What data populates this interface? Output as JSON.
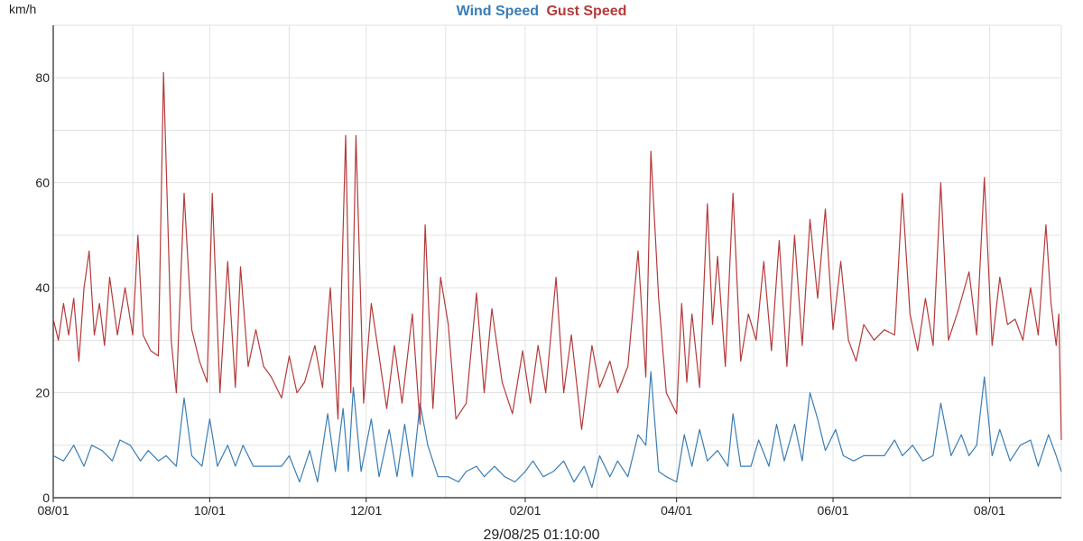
{
  "colors": {
    "wind": "#3a7db5",
    "gust": "#b53a3a",
    "grid": "#e2e2e2",
    "axis": "#222222"
  },
  "chart_data": {
    "type": "line",
    "title_parts": [
      "Wind Speed",
      "Gust Speed"
    ],
    "ylabel": "km/h",
    "ylim": [
      0,
      90
    ],
    "y_ticks": [
      0,
      20,
      40,
      60,
      80
    ],
    "x_range": [
      "2024-08-01",
      "2025-08-29"
    ],
    "x_ticks": [
      {
        "date": "2024-08-01",
        "label": "08/01"
      },
      {
        "date": "2024-10-01",
        "label": "10/01"
      },
      {
        "date": "2024-12-01",
        "label": "12/01"
      },
      {
        "date": "2025-02-01",
        "label": "02/01"
      },
      {
        "date": "2025-04-01",
        "label": "04/01"
      },
      {
        "date": "2025-06-01",
        "label": "06/01"
      },
      {
        "date": "2025-08-01",
        "label": "08/01"
      }
    ],
    "timestamp": "29/08/25 01:10:00",
    "grid": true,
    "series": [
      {
        "name": "Wind Speed",
        "color": "#3a7db5",
        "points": [
          [
            "2024-08-01",
            8
          ],
          [
            "2024-08-05",
            7
          ],
          [
            "2024-08-09",
            10
          ],
          [
            "2024-08-13",
            6
          ],
          [
            "2024-08-16",
            10
          ],
          [
            "2024-08-20",
            9
          ],
          [
            "2024-08-24",
            7
          ],
          [
            "2024-08-27",
            11
          ],
          [
            "2024-08-31",
            10
          ],
          [
            "2024-09-04",
            7
          ],
          [
            "2024-09-07",
            9
          ],
          [
            "2024-09-11",
            7
          ],
          [
            "2024-09-14",
            8
          ],
          [
            "2024-09-18",
            6
          ],
          [
            "2024-09-21",
            19
          ],
          [
            "2024-09-24",
            8
          ],
          [
            "2024-09-28",
            6
          ],
          [
            "2024-10-01",
            15
          ],
          [
            "2024-10-04",
            6
          ],
          [
            "2024-10-08",
            10
          ],
          [
            "2024-10-11",
            6
          ],
          [
            "2024-10-14",
            10
          ],
          [
            "2024-10-18",
            6
          ],
          [
            "2024-10-22",
            6
          ],
          [
            "2024-10-25",
            6
          ],
          [
            "2024-10-29",
            6
          ],
          [
            "2024-11-01",
            8
          ],
          [
            "2024-11-05",
            3
          ],
          [
            "2024-11-09",
            9
          ],
          [
            "2024-11-12",
            3
          ],
          [
            "2024-11-16",
            16
          ],
          [
            "2024-11-19",
            5
          ],
          [
            "2024-11-22",
            17
          ],
          [
            "2024-11-24",
            5
          ],
          [
            "2024-11-26",
            21
          ],
          [
            "2024-11-29",
            5
          ],
          [
            "2024-12-03",
            15
          ],
          [
            "2024-12-06",
            4
          ],
          [
            "2024-12-10",
            13
          ],
          [
            "2024-12-13",
            4
          ],
          [
            "2024-12-16",
            14
          ],
          [
            "2024-12-19",
            4
          ],
          [
            "2024-12-22",
            18
          ],
          [
            "2024-12-25",
            10
          ],
          [
            "2024-12-29",
            4
          ],
          [
            "2025-01-02",
            4
          ],
          [
            "2025-01-06",
            3
          ],
          [
            "2025-01-09",
            5
          ],
          [
            "2025-01-13",
            6
          ],
          [
            "2025-01-16",
            4
          ],
          [
            "2025-01-20",
            6
          ],
          [
            "2025-01-24",
            4
          ],
          [
            "2025-01-28",
            3
          ],
          [
            "2025-02-01",
            5
          ],
          [
            "2025-02-04",
            7
          ],
          [
            "2025-02-08",
            4
          ],
          [
            "2025-02-12",
            5
          ],
          [
            "2025-02-16",
            7
          ],
          [
            "2025-02-20",
            3
          ],
          [
            "2025-02-24",
            6
          ],
          [
            "2025-02-27",
            2
          ],
          [
            "2025-03-02",
            8
          ],
          [
            "2025-03-06",
            4
          ],
          [
            "2025-03-09",
            7
          ],
          [
            "2025-03-13",
            4
          ],
          [
            "2025-03-17",
            12
          ],
          [
            "2025-03-20",
            10
          ],
          [
            "2025-03-22",
            24
          ],
          [
            "2025-03-25",
            5
          ],
          [
            "2025-03-28",
            4
          ],
          [
            "2025-04-01",
            3
          ],
          [
            "2025-04-04",
            12
          ],
          [
            "2025-04-07",
            6
          ],
          [
            "2025-04-10",
            13
          ],
          [
            "2025-04-13",
            7
          ],
          [
            "2025-04-17",
            9
          ],
          [
            "2025-04-21",
            6
          ],
          [
            "2025-04-23",
            16
          ],
          [
            "2025-04-26",
            6
          ],
          [
            "2025-04-30",
            6
          ],
          [
            "2025-05-03",
            11
          ],
          [
            "2025-05-07",
            6
          ],
          [
            "2025-05-10",
            14
          ],
          [
            "2025-05-13",
            7
          ],
          [
            "2025-05-17",
            14
          ],
          [
            "2025-05-20",
            7
          ],
          [
            "2025-05-23",
            20
          ],
          [
            "2025-05-26",
            15
          ],
          [
            "2025-05-29",
            9
          ],
          [
            "2025-06-02",
            13
          ],
          [
            "2025-06-05",
            8
          ],
          [
            "2025-06-09",
            7
          ],
          [
            "2025-06-13",
            8
          ],
          [
            "2025-06-17",
            8
          ],
          [
            "2025-06-21",
            8
          ],
          [
            "2025-06-25",
            11
          ],
          [
            "2025-06-28",
            8
          ],
          [
            "2025-07-02",
            10
          ],
          [
            "2025-07-06",
            7
          ],
          [
            "2025-07-10",
            8
          ],
          [
            "2025-07-13",
            18
          ],
          [
            "2025-07-17",
            8
          ],
          [
            "2025-07-21",
            12
          ],
          [
            "2025-07-24",
            8
          ],
          [
            "2025-07-27",
            10
          ],
          [
            "2025-07-30",
            23
          ],
          [
            "2025-08-02",
            8
          ],
          [
            "2025-08-05",
            13
          ],
          [
            "2025-08-09",
            7
          ],
          [
            "2025-08-13",
            10
          ],
          [
            "2025-08-17",
            11
          ],
          [
            "2025-08-20",
            6
          ],
          [
            "2025-08-24",
            12
          ],
          [
            "2025-08-27",
            8
          ],
          [
            "2025-08-29",
            5
          ]
        ]
      },
      {
        "name": "Gust Speed",
        "color": "#b53a3a",
        "points": [
          [
            "2024-08-01",
            34
          ],
          [
            "2024-08-03",
            30
          ],
          [
            "2024-08-05",
            37
          ],
          [
            "2024-08-07",
            31
          ],
          [
            "2024-08-09",
            38
          ],
          [
            "2024-08-11",
            26
          ],
          [
            "2024-08-13",
            40
          ],
          [
            "2024-08-15",
            47
          ],
          [
            "2024-08-17",
            31
          ],
          [
            "2024-08-19",
            37
          ],
          [
            "2024-08-21",
            29
          ],
          [
            "2024-08-23",
            42
          ],
          [
            "2024-08-26",
            31
          ],
          [
            "2024-08-29",
            40
          ],
          [
            "2024-09-01",
            31
          ],
          [
            "2024-09-03",
            50
          ],
          [
            "2024-09-05",
            31
          ],
          [
            "2024-09-08",
            28
          ],
          [
            "2024-09-11",
            27
          ],
          [
            "2024-09-13",
            81
          ],
          [
            "2024-09-16",
            30
          ],
          [
            "2024-09-18",
            20
          ],
          [
            "2024-09-21",
            58
          ],
          [
            "2024-09-24",
            32
          ],
          [
            "2024-09-27",
            26
          ],
          [
            "2024-09-30",
            22
          ],
          [
            "2024-10-02",
            58
          ],
          [
            "2024-10-05",
            20
          ],
          [
            "2024-10-08",
            45
          ],
          [
            "2024-10-11",
            21
          ],
          [
            "2024-10-13",
            44
          ],
          [
            "2024-10-16",
            25
          ],
          [
            "2024-10-19",
            32
          ],
          [
            "2024-10-22",
            25
          ],
          [
            "2024-10-25",
            23
          ],
          [
            "2024-10-29",
            19
          ],
          [
            "2024-11-01",
            27
          ],
          [
            "2024-11-04",
            20
          ],
          [
            "2024-11-07",
            22
          ],
          [
            "2024-11-11",
            29
          ],
          [
            "2024-11-14",
            21
          ],
          [
            "2024-11-17",
            40
          ],
          [
            "2024-11-20",
            15
          ],
          [
            "2024-11-23",
            69
          ],
          [
            "2024-11-25",
            20
          ],
          [
            "2024-11-27",
            69
          ],
          [
            "2024-11-30",
            18
          ],
          [
            "2024-12-03",
            37
          ],
          [
            "2024-12-06",
            27
          ],
          [
            "2024-12-09",
            17
          ],
          [
            "2024-12-12",
            29
          ],
          [
            "2024-12-15",
            18
          ],
          [
            "2024-12-19",
            35
          ],
          [
            "2024-12-22",
            14
          ],
          [
            "2024-12-24",
            52
          ],
          [
            "2024-12-27",
            17
          ],
          [
            "2024-12-30",
            42
          ],
          [
            "2025-01-02",
            33
          ],
          [
            "2025-01-05",
            15
          ],
          [
            "2025-01-09",
            18
          ],
          [
            "2025-01-13",
            39
          ],
          [
            "2025-01-16",
            20
          ],
          [
            "2025-01-19",
            36
          ],
          [
            "2025-01-23",
            22
          ],
          [
            "2025-01-27",
            16
          ],
          [
            "2025-01-31",
            28
          ],
          [
            "2025-02-03",
            18
          ],
          [
            "2025-02-06",
            29
          ],
          [
            "2025-02-09",
            20
          ],
          [
            "2025-02-13",
            42
          ],
          [
            "2025-02-16",
            20
          ],
          [
            "2025-02-19",
            31
          ],
          [
            "2025-02-23",
            13
          ],
          [
            "2025-02-27",
            29
          ],
          [
            "2025-03-02",
            21
          ],
          [
            "2025-03-06",
            26
          ],
          [
            "2025-03-09",
            20
          ],
          [
            "2025-03-13",
            25
          ],
          [
            "2025-03-17",
            47
          ],
          [
            "2025-03-20",
            23
          ],
          [
            "2025-03-22",
            66
          ],
          [
            "2025-03-25",
            38
          ],
          [
            "2025-03-28",
            20
          ],
          [
            "2025-04-01",
            16
          ],
          [
            "2025-04-03",
            37
          ],
          [
            "2025-04-05",
            22
          ],
          [
            "2025-04-07",
            35
          ],
          [
            "2025-04-10",
            21
          ],
          [
            "2025-04-13",
            56
          ],
          [
            "2025-04-15",
            33
          ],
          [
            "2025-04-17",
            46
          ],
          [
            "2025-04-20",
            25
          ],
          [
            "2025-04-23",
            58
          ],
          [
            "2025-04-26",
            26
          ],
          [
            "2025-04-29",
            35
          ],
          [
            "2025-05-02",
            30
          ],
          [
            "2025-05-05",
            45
          ],
          [
            "2025-05-08",
            28
          ],
          [
            "2025-05-11",
            49
          ],
          [
            "2025-05-14",
            25
          ],
          [
            "2025-05-17",
            50
          ],
          [
            "2025-05-20",
            29
          ],
          [
            "2025-05-23",
            53
          ],
          [
            "2025-05-26",
            38
          ],
          [
            "2025-05-29",
            55
          ],
          [
            "2025-06-01",
            32
          ],
          [
            "2025-06-04",
            45
          ],
          [
            "2025-06-07",
            30
          ],
          [
            "2025-06-10",
            26
          ],
          [
            "2025-06-13",
            33
          ],
          [
            "2025-06-17",
            30
          ],
          [
            "2025-06-21",
            32
          ],
          [
            "2025-06-25",
            31
          ],
          [
            "2025-06-28",
            58
          ],
          [
            "2025-07-01",
            35
          ],
          [
            "2025-07-04",
            28
          ],
          [
            "2025-07-07",
            38
          ],
          [
            "2025-07-10",
            29
          ],
          [
            "2025-07-13",
            60
          ],
          [
            "2025-07-16",
            30
          ],
          [
            "2025-07-20",
            36
          ],
          [
            "2025-07-24",
            43
          ],
          [
            "2025-07-27",
            31
          ],
          [
            "2025-07-30",
            61
          ],
          [
            "2025-08-02",
            29
          ],
          [
            "2025-08-05",
            42
          ],
          [
            "2025-08-08",
            33
          ],
          [
            "2025-08-11",
            34
          ],
          [
            "2025-08-14",
            30
          ],
          [
            "2025-08-17",
            40
          ],
          [
            "2025-08-20",
            31
          ],
          [
            "2025-08-23",
            52
          ],
          [
            "2025-08-25",
            37
          ],
          [
            "2025-08-27",
            29
          ],
          [
            "2025-08-28",
            35
          ],
          [
            "2025-08-29",
            11
          ]
        ]
      }
    ]
  }
}
